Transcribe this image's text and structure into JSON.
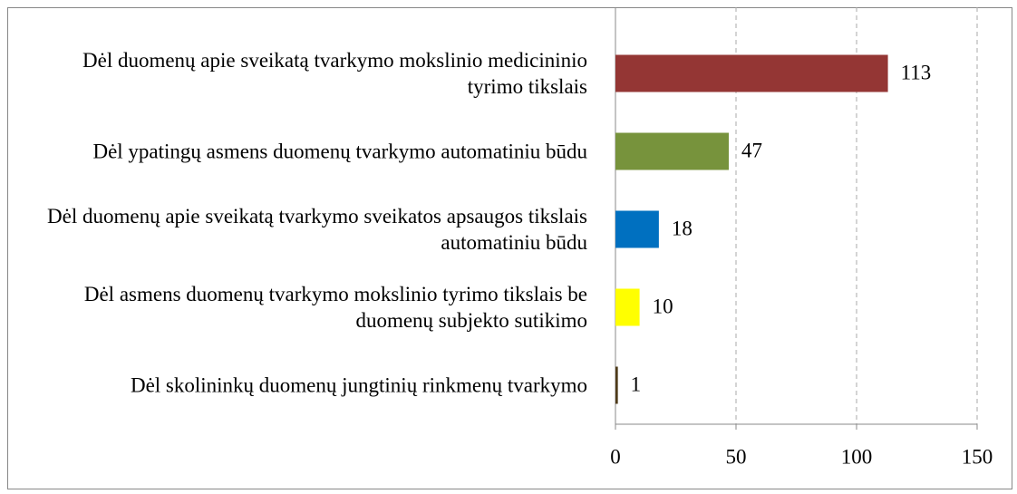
{
  "chart_data": {
    "type": "barh",
    "categories": [
      "Dėl duomenų apie sveikatą tvarkymo mokslinio medicininio tyrimo tikslais",
      "Dėl ypatingų asmens duomenų tvarkymo automatiniu būdu",
      "Dėl duomenų apie sveikatą tvarkymo sveikatos apsaugos tikslais automatiniu būdu",
      "Dėl asmens duomenų tvarkymo mokslinio tyrimo tikslais be duomenų subjekto sutikimo",
      "Dėl skolininkų duomenų jungtinių rinkmenų tvarkymo"
    ],
    "values": [
      113,
      47,
      18,
      10,
      1
    ],
    "colors": [
      "#943634",
      "#77933c",
      "#0070c0",
      "#ffff00",
      "#4f3b1a"
    ],
    "xlim": [
      0,
      150
    ],
    "xticks": [
      0,
      50,
      100,
      150
    ],
    "grid": true
  }
}
